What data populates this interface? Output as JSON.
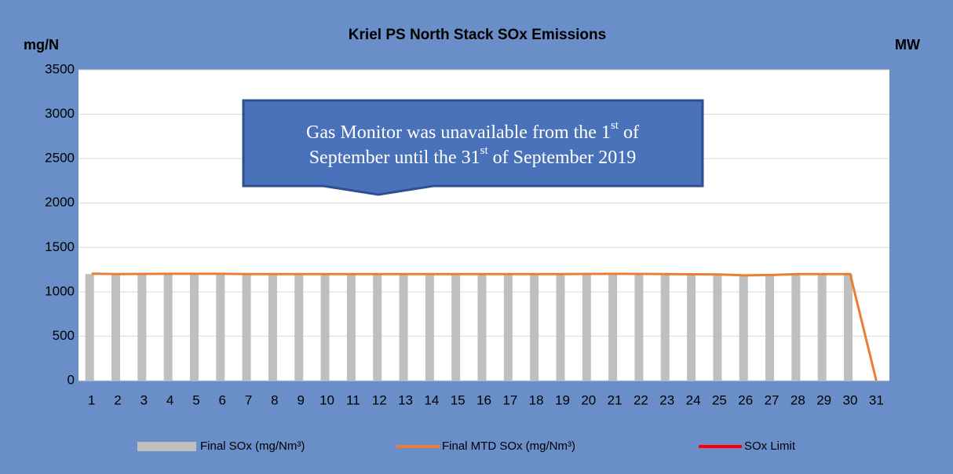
{
  "chart_data": {
    "type": "bar",
    "title": "Kriel PS North Stack SOx Emissions",
    "y_label": "mg/N",
    "y2_label": "MW",
    "categories": [
      "1",
      "2",
      "3",
      "4",
      "5",
      "6",
      "7",
      "8",
      "9",
      "10",
      "11",
      "12",
      "13",
      "14",
      "15",
      "16",
      "17",
      "18",
      "19",
      "20",
      "21",
      "22",
      "23",
      "24",
      "25",
      "26",
      "27",
      "28",
      "29",
      "30",
      "31"
    ],
    "series": [
      {
        "name": "Final SOx (mg/Nm³)",
        "type": "bar",
        "color": "#bfbfbf",
        "values": [
          1200,
          1200,
          1200,
          1200,
          1200,
          1200,
          1200,
          1200,
          1200,
          1200,
          1200,
          1200,
          1200,
          1200,
          1200,
          1200,
          1200,
          1200,
          1200,
          1200,
          1200,
          1200,
          1200,
          1200,
          1200,
          1180,
          1185,
          1200,
          1200,
          1200,
          0
        ]
      },
      {
        "name": "Final MTD SOx (mg/Nm³)",
        "type": "line",
        "color": "#ed7d31",
        "values": [
          1205,
          1200,
          1202,
          1203,
          1203,
          1203,
          1200,
          1200,
          1200,
          1200,
          1200,
          1200,
          1200,
          1200,
          1200,
          1200,
          1200,
          1200,
          1200,
          1202,
          1203,
          1202,
          1200,
          1198,
          1195,
          1185,
          1190,
          1200,
          1200,
          1200,
          0
        ]
      },
      {
        "name": "SOx Limit",
        "type": "line",
        "color": "#ff0000",
        "values": [
          null,
          null,
          null,
          null,
          null,
          null,
          null,
          null,
          null,
          null,
          null,
          null,
          null,
          null,
          null,
          null,
          null,
          null,
          null,
          null,
          null,
          null,
          null,
          null,
          null,
          null,
          null,
          null,
          null,
          null,
          null
        ]
      }
    ],
    "ylim": [
      0,
      3500
    ],
    "yticks": [
      0,
      500,
      1000,
      1500,
      2000,
      2500,
      3000,
      3500
    ],
    "grid": true,
    "legend": "bottom",
    "annotation": [
      {
        "text": "Gas Monitor was unavailable from the 1",
        "sup": "st",
        "after": " of"
      },
      {
        "text": "September until the 31",
        "sup": "st",
        "after": " of September 2019"
      }
    ]
  }
}
